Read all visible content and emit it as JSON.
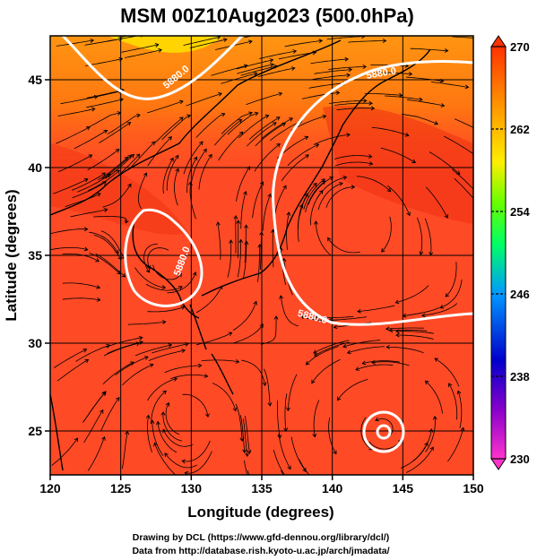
{
  "title": "MSM 00Z10Aug2023 (500.0hPa)",
  "x_axis": {
    "label": "Longitude (degrees)",
    "range": [
      120,
      150
    ],
    "ticks": [
      120,
      125,
      130,
      135,
      140,
      145,
      150
    ]
  },
  "y_axis": {
    "label": "Latitude  (degrees)",
    "range": [
      22.5,
      47.5
    ],
    "ticks": [
      25,
      30,
      35,
      40,
      45
    ]
  },
  "colorbar": {
    "range": [
      230,
      270
    ],
    "ticks": [
      230,
      238,
      246,
      254,
      262,
      270
    ],
    "colors": [
      "#ff33cc",
      "#8800cc",
      "#0000cc",
      "#0099ff",
      "#00ff66",
      "#66ff00",
      "#ffee00",
      "#ff9900",
      "#ff3300"
    ]
  },
  "contour_label": "5880.0",
  "credits": {
    "line1": "Drawing by DCL (https://www.gfd-dennou.org/library/dcl/)",
    "line2": "Data from http://database.rish.kyoto-u.ac.jp/arch/jmadata/"
  },
  "colors": {
    "field_base": "#ff4422",
    "field_warm": "#ee3311",
    "field_north": "#ffcc00",
    "contour": "#ffffff",
    "streamline": "#000000"
  }
}
